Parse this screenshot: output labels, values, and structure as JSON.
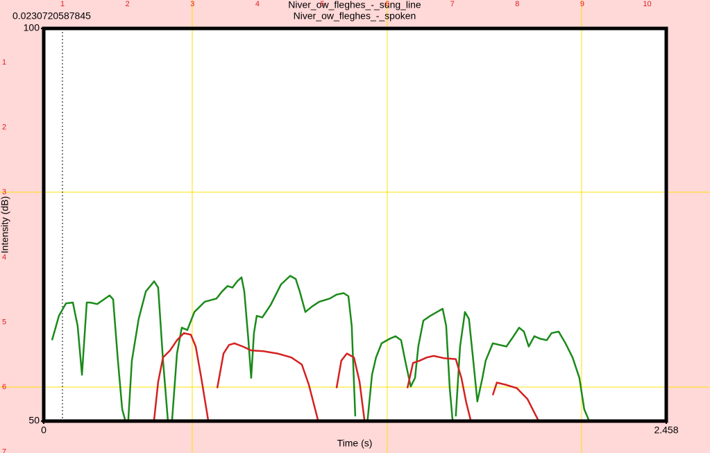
{
  "ruler": {
    "top": [
      1,
      2,
      3,
      4,
      5,
      6,
      7,
      8,
      9,
      10
    ],
    "left": [
      1,
      2,
      3,
      4,
      5,
      6,
      7
    ]
  },
  "chart_data": {
    "type": "line",
    "annotation": "0.0230720587845",
    "xlabel": "Time (s)",
    "ylabel": "Intensity (dB)",
    "xlim": [
      0,
      2.458
    ],
    "ylim": [
      50,
      100
    ],
    "xticks": [
      0,
      2.458
    ],
    "yticks": [
      50,
      100
    ],
    "series": [
      {
        "name": "Niver_ow_fleghes_-_sung_line",
        "color": "#1a8a1a",
        "x": [
          0.033,
          0.06,
          0.088,
          0.115,
          0.134,
          0.151,
          0.17,
          0.184,
          0.211,
          0.238,
          0.26,
          0.274,
          0.293,
          0.31,
          0.321,
          0.334,
          0.334,
          0.348,
          0.375,
          0.403,
          0.436,
          0.452,
          0.471,
          0.49,
          0.507,
          0.507,
          0.526,
          0.545,
          0.567,
          0.595,
          0.636,
          0.682,
          0.704,
          0.726,
          0.745,
          0.764,
          0.781,
          0.792,
          0.808,
          0.819,
          0.83,
          0.841,
          0.863,
          0.896,
          0.937,
          0.973,
          0.995,
          1.011,
          1.033,
          1.06,
          1.088,
          1.129,
          1.156,
          1.184,
          1.203,
          1.216,
          1.23,
          1.279,
          1.279,
          1.296,
          1.312,
          1.334,
          1.367,
          1.389,
          1.411,
          1.427,
          1.449,
          1.466,
          1.479,
          1.499,
          1.526,
          1.553,
          1.575,
          1.589,
          1.603,
          1.614,
          1.627,
          1.627,
          1.644,
          1.663,
          1.679,
          1.696,
          1.712,
          1.732,
          1.745,
          1.773,
          1.8,
          1.827,
          1.855,
          1.877,
          1.896,
          1.915,
          1.937,
          1.959,
          1.986,
          2.005,
          2.033,
          2.06,
          2.088,
          2.115,
          2.134,
          2.151
        ],
        "values": [
          60.3,
          63.4,
          65.0,
          65.1,
          62.1,
          55.9,
          65.1,
          65.1,
          64.9,
          65.5,
          66.0,
          65.5,
          57.7,
          51.5,
          50.2,
          null,
          50.2,
          57.7,
          63.0,
          66.5,
          67.8,
          67.0,
          57.7,
          50.2,
          null,
          50.2,
          58.6,
          61.9,
          61.6,
          63.9,
          65.2,
          65.6,
          66.5,
          67.2,
          67.0,
          67.8,
          68.3,
          66.5,
          60.3,
          55.5,
          61.2,
          63.4,
          63.2,
          64.8,
          67.4,
          68.5,
          68.1,
          66.5,
          63.9,
          64.6,
          65.2,
          65.6,
          66.1,
          66.3,
          65.9,
          62.1,
          50.6,
          null,
          50.2,
          55.9,
          58.1,
          59.9,
          60.5,
          60.8,
          60.3,
          57.7,
          54.4,
          55.5,
          59.5,
          62.8,
          63.4,
          63.9,
          64.3,
          62.1,
          54.2,
          50.2,
          null,
          50.6,
          59.5,
          63.9,
          63.0,
          57.7,
          52.5,
          55.5,
          57.7,
          59.9,
          59.7,
          59.5,
          60.8,
          61.9,
          61.4,
          59.5,
          60.8,
          60.5,
          60.3,
          61.2,
          61.4,
          59.9,
          58.1,
          55.5,
          51.5,
          50.2
        ]
      },
      {
        "name": "Niver_ow_fleghes_-_spoken",
        "color": "#d42020",
        "x": [
          0.436,
          0.452,
          0.471,
          0.499,
          0.526,
          0.553,
          0.581,
          0.6,
          0.622,
          0.649,
          0.663,
          0.685,
          0.71,
          0.732,
          0.753,
          0.786,
          0.819,
          0.868,
          0.923,
          0.978,
          1.019,
          1.047,
          1.082,
          1.142,
          1.156,
          1.175,
          1.197,
          1.225,
          1.247,
          1.266,
          1.416,
          1.436,
          1.458,
          1.485,
          1.512,
          1.54,
          1.581,
          1.627,
          1.649,
          1.668,
          1.685,
          1.759,
          1.773,
          1.789,
          1.827,
          1.868,
          1.91,
          1.951
        ],
        "values": [
          50.2,
          55.0,
          58.1,
          59.0,
          60.3,
          61.2,
          61.0,
          59.5,
          55.5,
          50.2,
          null,
          54.2,
          58.6,
          59.7,
          59.9,
          59.5,
          59.0,
          58.9,
          58.6,
          58.1,
          57.2,
          54.6,
          50.2,
          null,
          54.2,
          57.7,
          58.6,
          58.1,
          55.0,
          50.2,
          null,
          54.2,
          57.4,
          57.7,
          58.1,
          58.3,
          58.0,
          57.9,
          55.5,
          52.4,
          50.2,
          null,
          53.3,
          54.9,
          54.6,
          54.2,
          52.8,
          50.2
        ]
      }
    ]
  }
}
